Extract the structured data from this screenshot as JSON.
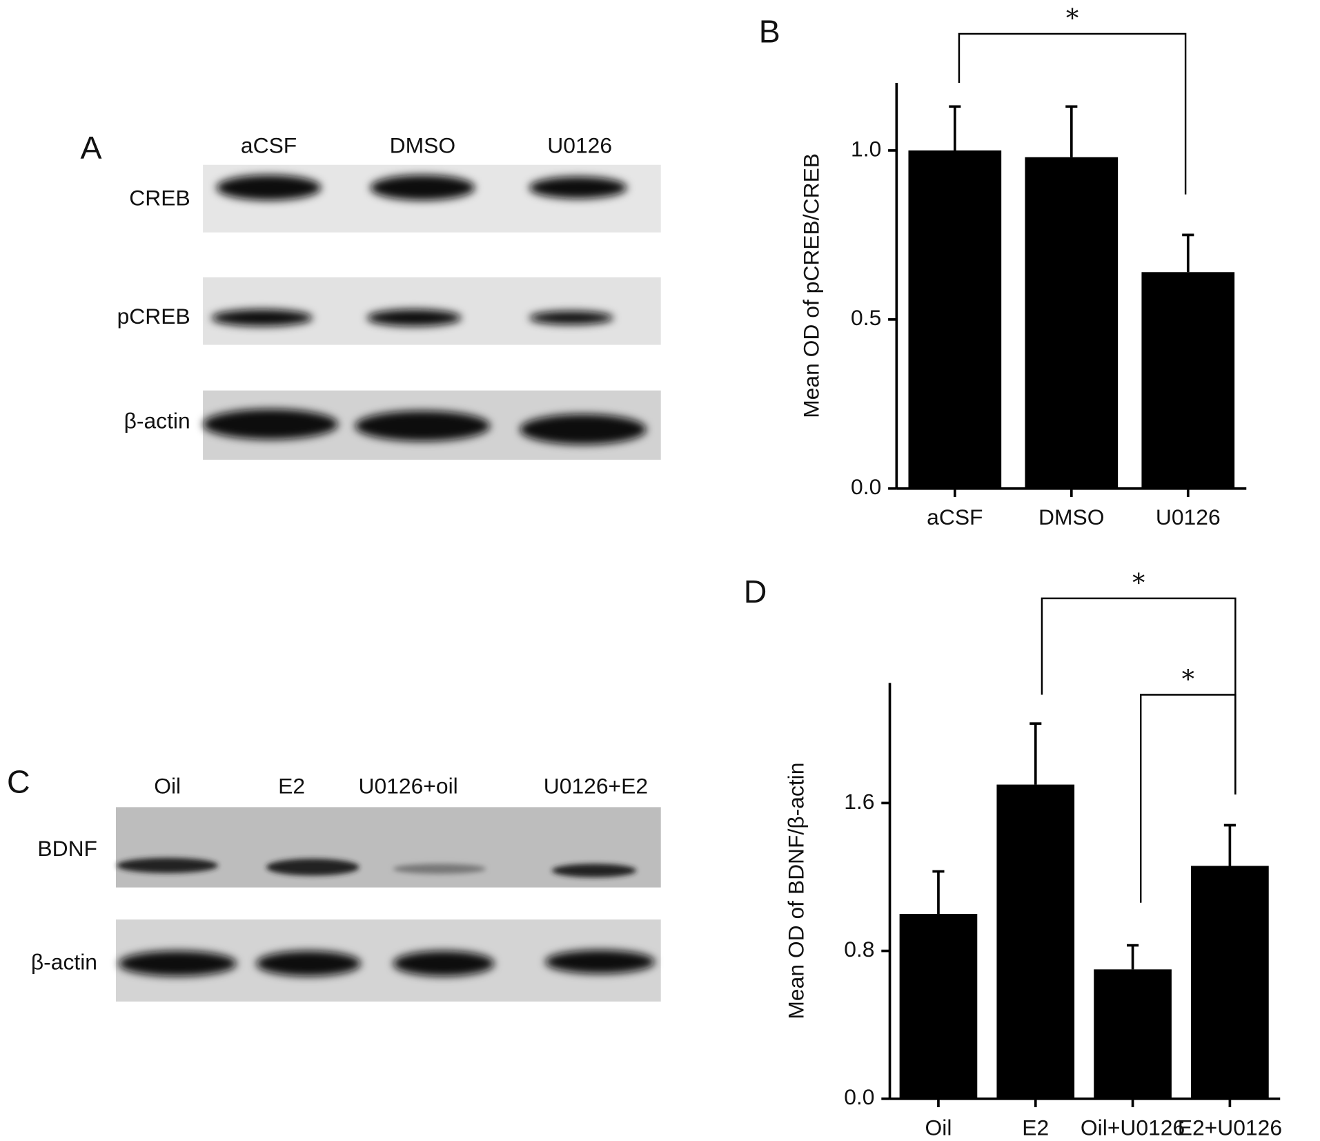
{
  "blots": [
    {
      "label": "A",
      "lanes": [
        "aCSF",
        "DMSO",
        "U0126"
      ],
      "rows": [
        "CREB",
        "pCREB",
        "β-actin"
      ]
    },
    {
      "label": "C",
      "lanes": [
        "Oil",
        "E2",
        "U0126+oil",
        "U0126+E2"
      ],
      "rows": [
        "BDNF",
        "β-actin"
      ]
    }
  ],
  "chart_data": [
    {
      "type": "bar",
      "label": "B",
      "ylabel": "Mean OD of pCREB/CREB",
      "categories": [
        "aCSF",
        "DMSO",
        "U0126"
      ],
      "values": [
        1.0,
        0.98,
        0.64
      ],
      "errors": [
        0.13,
        0.15,
        0.11
      ],
      "color": "#000000",
      "ylim": [
        0,
        1.2
      ],
      "yticks": [
        {
          "value": 0,
          "label": "0.0"
        },
        {
          "value": 0.5,
          "label": "0.5"
        },
        {
          "value": 1,
          "label": "1.0"
        }
      ],
      "annotations": [
        "*"
      ]
    },
    {
      "type": "bar",
      "label": "D",
      "ylabel": "Mean OD of BDNF/β-actin",
      "categories": [
        "Oil",
        "E2",
        "Oil+U0126",
        "E2+U0126"
      ],
      "values": [
        1.0,
        1.7,
        0.7,
        1.26
      ],
      "errors": [
        0.23,
        0.33,
        0.13,
        0.22
      ],
      "color": "#000000",
      "ylim": [
        0,
        2.25
      ],
      "yticks": [
        {
          "value": 0,
          "label": "0.0"
        },
        {
          "value": 0.8,
          "label": "0.8"
        },
        {
          "value": 1.6,
          "label": "1.6"
        }
      ],
      "annotations": [
        "*",
        "*"
      ]
    }
  ]
}
